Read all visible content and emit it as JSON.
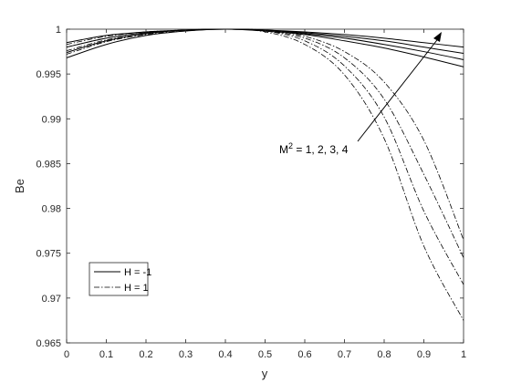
{
  "chart_data": {
    "type": "line",
    "xlabel": "y",
    "ylabel": "Be",
    "xlim": [
      0,
      1
    ],
    "ylim": [
      0.965,
      1
    ],
    "xticks": [
      "0",
      "0.1",
      "0.2",
      "0.3",
      "0.4",
      "0.5",
      "0.6",
      "0.7",
      "0.8",
      "0.9",
      "1"
    ],
    "yticks": [
      "0.965",
      "0.97",
      "0.975",
      "0.98",
      "0.985",
      "0.99",
      "0.995",
      "1"
    ],
    "grid": false,
    "legend_position": "bottom-left",
    "legend": [
      {
        "label": "H = -1",
        "style": "solid"
      },
      {
        "label": "H = 1",
        "style": "dashdot"
      }
    ],
    "annotation": {
      "text_main": "M",
      "text_sup": "2",
      "text_rest": " = 1, 2, 3, 4",
      "arrow_target": [
        0.95,
        0.9995
      ]
    },
    "x": [
      0,
      0.1,
      0.2,
      0.3,
      0.4,
      0.5,
      0.6,
      0.7,
      0.8,
      0.9,
      1.0
    ],
    "series": [
      {
        "group": "H = -1",
        "M2": 1,
        "style": "solid",
        "values": [
          0.9985,
          0.9993,
          0.9997,
          0.9999,
          1.0,
          0.9999,
          0.9997,
          0.9994,
          0.999,
          0.9985,
          0.998
        ]
      },
      {
        "group": "H = -1",
        "M2": 2,
        "style": "solid",
        "values": [
          0.998,
          0.999,
          0.9996,
          0.9999,
          1.0,
          0.9999,
          0.9996,
          0.9992,
          0.9987,
          0.998,
          0.9973
        ]
      },
      {
        "group": "H = -1",
        "M2": 3,
        "style": "solid",
        "values": [
          0.9974,
          0.9987,
          0.9995,
          0.9999,
          1.0,
          0.9999,
          0.9995,
          0.999,
          0.9983,
          0.9975,
          0.9966
        ]
      },
      {
        "group": "H = -1",
        "M2": 4,
        "style": "solid",
        "values": [
          0.9968,
          0.9983,
          0.9993,
          0.9998,
          1.0,
          0.9998,
          0.9994,
          0.9987,
          0.9979,
          0.9969,
          0.9958
        ]
      },
      {
        "group": "H = 1",
        "M2": 1,
        "style": "dashdot",
        "values": [
          0.9983,
          0.9992,
          0.9997,
          0.9999,
          1.0,
          0.9999,
          0.9992,
          0.9975,
          0.9941,
          0.9876,
          0.9765
        ]
      },
      {
        "group": "H = 1",
        "M2": 2,
        "style": "dashdot",
        "values": [
          0.998,
          0.999,
          0.9996,
          0.9999,
          1.0,
          0.9998,
          0.999,
          0.9968,
          0.9922,
          0.9838,
          0.9745
        ]
      },
      {
        "group": "H = 1",
        "M2": 3,
        "style": "dashdot",
        "values": [
          0.9976,
          0.9988,
          0.9995,
          0.9999,
          1.0,
          0.9998,
          0.9987,
          0.9959,
          0.9902,
          0.9797,
          0.9715
        ]
      },
      {
        "group": "H = 1",
        "M2": 4,
        "style": "dashdot",
        "values": [
          0.9972,
          0.9986,
          0.9994,
          0.9998,
          1.0,
          0.9997,
          0.9983,
          0.9949,
          0.9878,
          0.9758,
          0.9675
        ]
      }
    ]
  }
}
